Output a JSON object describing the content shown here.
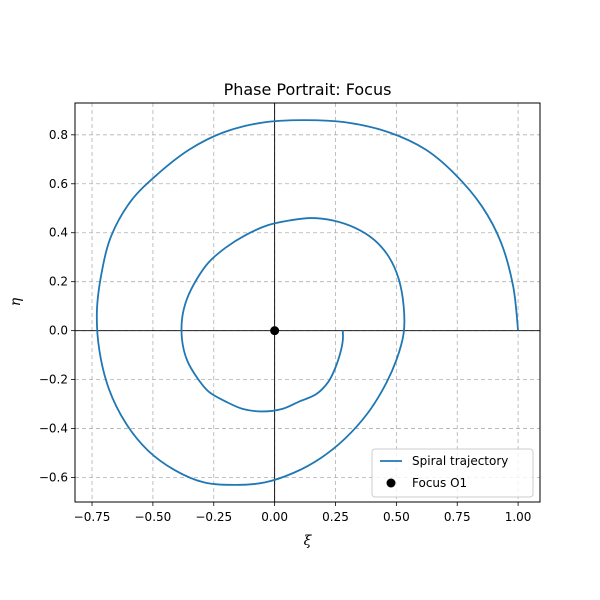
{
  "chart_data": {
    "type": "line",
    "title": "Phase Portrait: Focus",
    "xlabel": "ξ",
    "ylabel": "η",
    "xlim": [
      -0.82,
      1.09
    ],
    "ylim": [
      -0.7,
      0.93
    ],
    "xticks": [
      -0.75,
      -0.5,
      -0.25,
      0.0,
      0.25,
      0.5,
      0.75,
      1.0
    ],
    "xtick_labels": [
      "−0.75",
      "−0.50",
      "−0.25",
      "0.00",
      "0.25",
      "0.50",
      "0.75",
      "1.00"
    ],
    "yticks": [
      -0.6,
      -0.4,
      -0.2,
      0.0,
      0.2,
      0.4,
      0.6,
      0.8
    ],
    "ytick_labels": [
      "−0.6",
      "−0.4",
      "−0.2",
      "0.0",
      "0.2",
      "0.4",
      "0.6",
      "0.8"
    ],
    "grid": true,
    "legend_position": "lower-right",
    "series": [
      {
        "name": "Spiral trajectory",
        "kind": "line",
        "color": "#1f77b4",
        "points": [
          [
            1.0,
            0.0
          ],
          [
            0.98,
            0.18
          ],
          [
            0.93,
            0.36
          ],
          [
            0.85,
            0.51
          ],
          [
            0.74,
            0.64
          ],
          [
            0.62,
            0.74
          ],
          [
            0.47,
            0.81
          ],
          [
            0.3,
            0.85
          ],
          [
            0.12,
            0.86
          ],
          [
            -0.05,
            0.85
          ],
          [
            -0.21,
            0.81
          ],
          [
            -0.35,
            0.74
          ],
          [
            -0.48,
            0.64
          ],
          [
            -0.59,
            0.53
          ],
          [
            -0.67,
            0.39
          ],
          [
            -0.71,
            0.24
          ],
          [
            -0.73,
            0.08
          ],
          [
            -0.72,
            -0.08
          ],
          [
            -0.68,
            -0.24
          ],
          [
            -0.61,
            -0.38
          ],
          [
            -0.52,
            -0.49
          ],
          [
            -0.41,
            -0.57
          ],
          [
            -0.29,
            -0.62
          ],
          [
            -0.16,
            -0.63
          ],
          [
            -0.04,
            -0.62
          ],
          [
            0.08,
            -0.58
          ],
          [
            0.19,
            -0.52
          ],
          [
            0.29,
            -0.44
          ],
          [
            0.38,
            -0.34
          ],
          [
            0.45,
            -0.23
          ],
          [
            0.5,
            -0.12
          ],
          [
            0.53,
            -0.01
          ],
          [
            0.53,
            0.1
          ],
          [
            0.51,
            0.21
          ],
          [
            0.47,
            0.3
          ],
          [
            0.41,
            0.37
          ],
          [
            0.33,
            0.42
          ],
          [
            0.24,
            0.45
          ],
          [
            0.15,
            0.46
          ],
          [
            0.06,
            0.45
          ],
          [
            -0.03,
            0.43
          ],
          [
            -0.12,
            0.39
          ],
          [
            -0.2,
            0.34
          ],
          [
            -0.27,
            0.28
          ],
          [
            -0.32,
            0.21
          ],
          [
            -0.36,
            0.13
          ],
          [
            -0.38,
            0.05
          ],
          [
            -0.38,
            -0.04
          ],
          [
            -0.36,
            -0.12
          ],
          [
            -0.32,
            -0.19
          ],
          [
            -0.27,
            -0.25
          ],
          [
            -0.2,
            -0.29
          ],
          [
            -0.13,
            -0.32
          ],
          [
            -0.05,
            -0.33
          ],
          [
            0.03,
            -0.32
          ],
          [
            0.1,
            -0.29
          ],
          [
            0.17,
            -0.26
          ],
          [
            0.22,
            -0.21
          ],
          [
            0.25,
            -0.15
          ],
          [
            0.27,
            -0.09
          ],
          [
            0.28,
            -0.04
          ],
          [
            0.28,
            0.0
          ]
        ]
      },
      {
        "name": "Focus O1",
        "kind": "point",
        "color": "#000000",
        "points": [
          [
            0.0,
            0.0
          ]
        ]
      }
    ]
  }
}
